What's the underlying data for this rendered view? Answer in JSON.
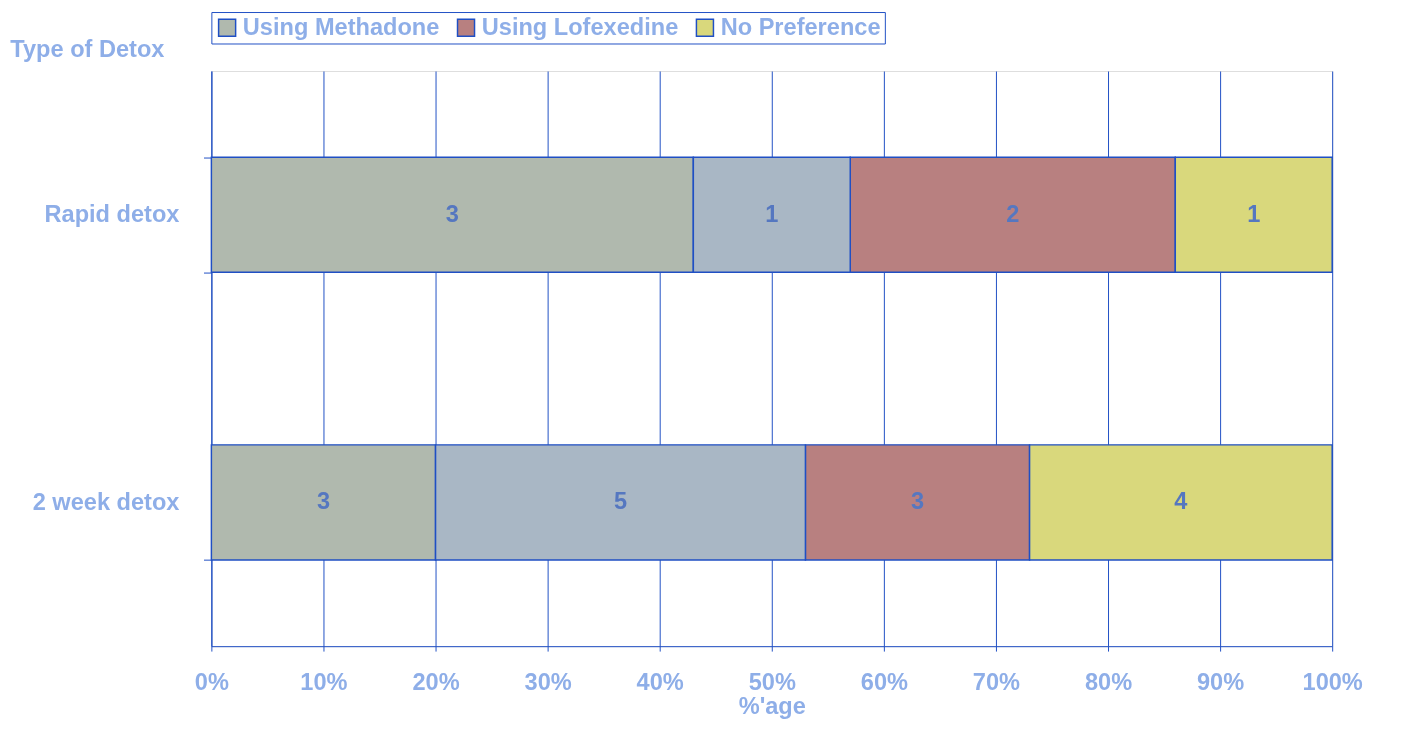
{
  "chart_data": {
    "type": "bar",
    "orientation": "horizontal",
    "stacked": true,
    "categories": [
      "Rapid detox",
      "2 week detox"
    ],
    "series": [
      {
        "name": "Using Methadone",
        "color": "#b0b9ae",
        "values": [
          43,
          20
        ]
      },
      {
        "color": "#a9b7c5",
        "values": [
          14,
          33
        ]
      },
      {
        "name": "Using Lofexedine",
        "color": "#b88080",
        "values": [
          29,
          20
        ]
      },
      {
        "name": "No Preference",
        "color": "#d9d87c",
        "values": [
          14,
          27
        ]
      }
    ],
    "annotations": [
      "3",
      "1",
      "2",
      "1",
      "3",
      "5",
      "3",
      "4"
    ],
    "xlim": [
      0,
      100
    ],
    "xticks": [
      {
        "value": 0,
        "label": "0%"
      },
      {
        "value": 10,
        "label": "10%"
      },
      {
        "value": 20,
        "label": "20%"
      },
      {
        "value": 30,
        "label": "30%"
      },
      {
        "value": 40,
        "label": "40%"
      },
      {
        "value": 50,
        "label": "50%"
      },
      {
        "value": 60,
        "label": "60%"
      },
      {
        "value": 70,
        "label": "70%"
      },
      {
        "value": 80,
        "label": "80%"
      },
      {
        "value": 90,
        "label": "90%"
      },
      {
        "value": 100,
        "label": "100%"
      }
    ],
    "xlabel": "%'age",
    "ylabel": "Type of Detox",
    "grid": "x",
    "legend": "top"
  }
}
